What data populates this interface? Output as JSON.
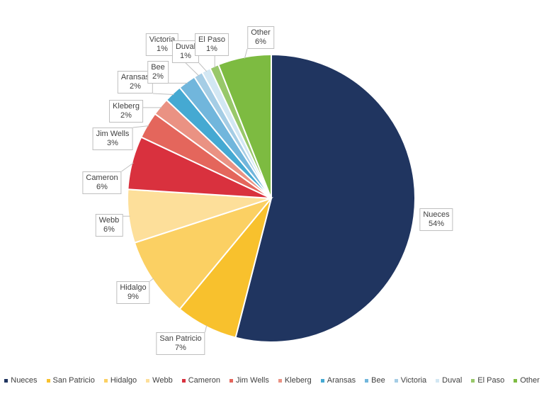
{
  "chart_data": {
    "type": "pie",
    "title": "",
    "legend_position": "bottom",
    "start_angle_deg": 0,
    "direction": "clockwise",
    "slices": [
      {
        "name": "Nueces",
        "value": 54,
        "label": "54%",
        "color": "#203560"
      },
      {
        "name": "San Patricio",
        "value": 7,
        "label": "7%",
        "color": "#f8c12d"
      },
      {
        "name": "Hidalgo",
        "value": 9,
        "label": "9%",
        "color": "#fbd063"
      },
      {
        "name": "Webb",
        "value": 6,
        "label": "6%",
        "color": "#fddf9a"
      },
      {
        "name": "Cameron",
        "value": 6,
        "label": "6%",
        "color": "#d9313e"
      },
      {
        "name": "Jim Wells",
        "value": 3,
        "label": "3%",
        "color": "#e4665c"
      },
      {
        "name": "Kleberg",
        "value": 2,
        "label": "2%",
        "color": "#ea9283"
      },
      {
        "name": "Aransas",
        "value": 2,
        "label": "2%",
        "color": "#45a9d2"
      },
      {
        "name": "Bee",
        "value": 2,
        "label": "2%",
        "color": "#71b6dc"
      },
      {
        "name": "Victoria",
        "value": 1,
        "label": "1%",
        "color": "#a5cde5"
      },
      {
        "name": "Duval",
        "value": 1,
        "label": "1%",
        "color": "#d2e7f3"
      },
      {
        "name": "El Paso",
        "value": 1,
        "label": "1%",
        "color": "#98c86a"
      },
      {
        "name": "Other",
        "value": 6,
        "label": "6%",
        "color": "#7dbb41"
      }
    ]
  }
}
